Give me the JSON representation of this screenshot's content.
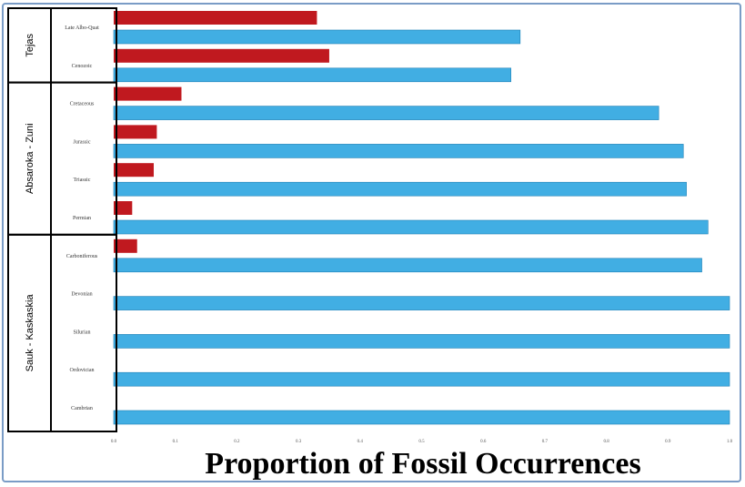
{
  "chart_data": {
    "type": "bar",
    "orientation": "horizontal",
    "xlabel": "Proportion of Fossil Occurrences",
    "ylabel": "",
    "xlim": [
      0,
      1
    ],
    "x_ticks": [
      "0.0",
      "0.1",
      "0.2",
      "0.3",
      "0.4",
      "0.5",
      "0.6",
      "0.7",
      "0.8",
      "0.9",
      "1.0"
    ],
    "grid": false,
    "categories": [
      "Late Albo-Quat",
      "Cenozoic",
      "Cretaceous",
      "Jurassic",
      "Triassic",
      "Permian",
      "Carboniferous",
      "Devonian",
      "Silurian",
      "Ordovician",
      "Cambrian"
    ],
    "series": [
      {
        "color": "#c0191f",
        "values": [
          0.33,
          0.35,
          0.11,
          0.07,
          0.065,
          0.03,
          0.038,
          0,
          0,
          0,
          0
        ]
      },
      {
        "color": "#41aee3",
        "values": [
          0.66,
          0.645,
          0.885,
          0.925,
          0.93,
          0.965,
          0.955,
          1.0,
          1.0,
          1.0,
          1.0
        ]
      }
    ],
    "groups": [
      {
        "label": "Tejas",
        "categories": [
          "Late Albo-Quat",
          "Cenozoic"
        ]
      },
      {
        "label": "Absaroka - Zuni",
        "categories": [
          "Cretaceous",
          "Jurassic",
          "Triassic",
          "Permian"
        ]
      },
      {
        "label": "Sauk - Kaskaskia",
        "categories": [
          "Carboniferous",
          "Devonian",
          "Silurian",
          "Ordovician",
          "Cambrian"
        ]
      }
    ]
  }
}
